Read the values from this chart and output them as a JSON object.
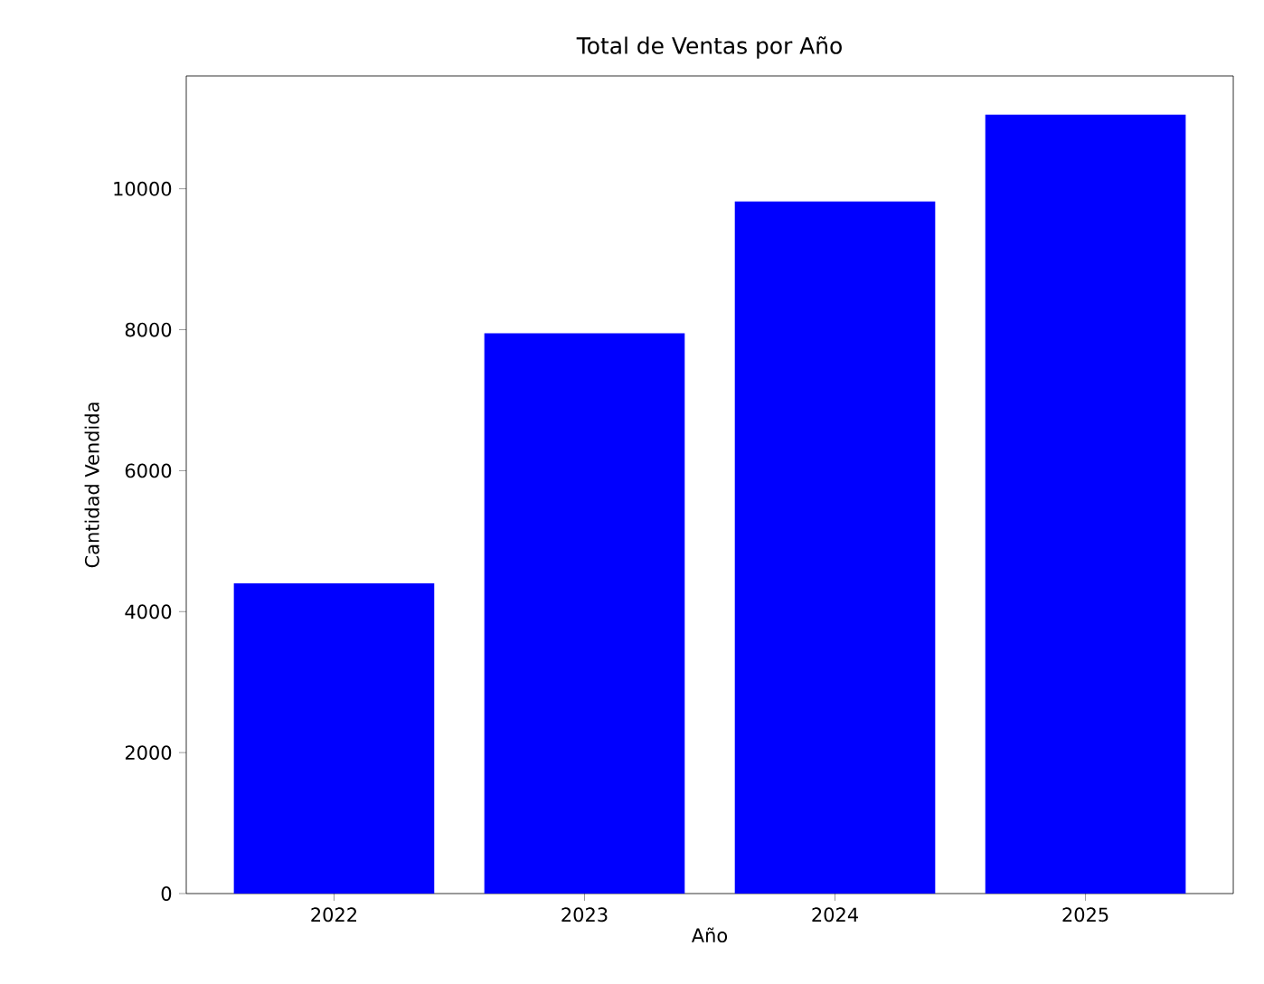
{
  "chart_data": {
    "type": "bar",
    "title": "Total de Ventas por Año",
    "xlabel": "Año",
    "ylabel": "Cantidad Vendida",
    "categories": [
      "2022",
      "2023",
      "2024",
      "2025"
    ],
    "values": [
      4400,
      7950,
      9820,
      11050
    ],
    "color": "#0000ff",
    "ylim": [
      0,
      11600
    ],
    "yticks": [
      0,
      2000,
      4000,
      6000,
      8000,
      10000
    ]
  }
}
